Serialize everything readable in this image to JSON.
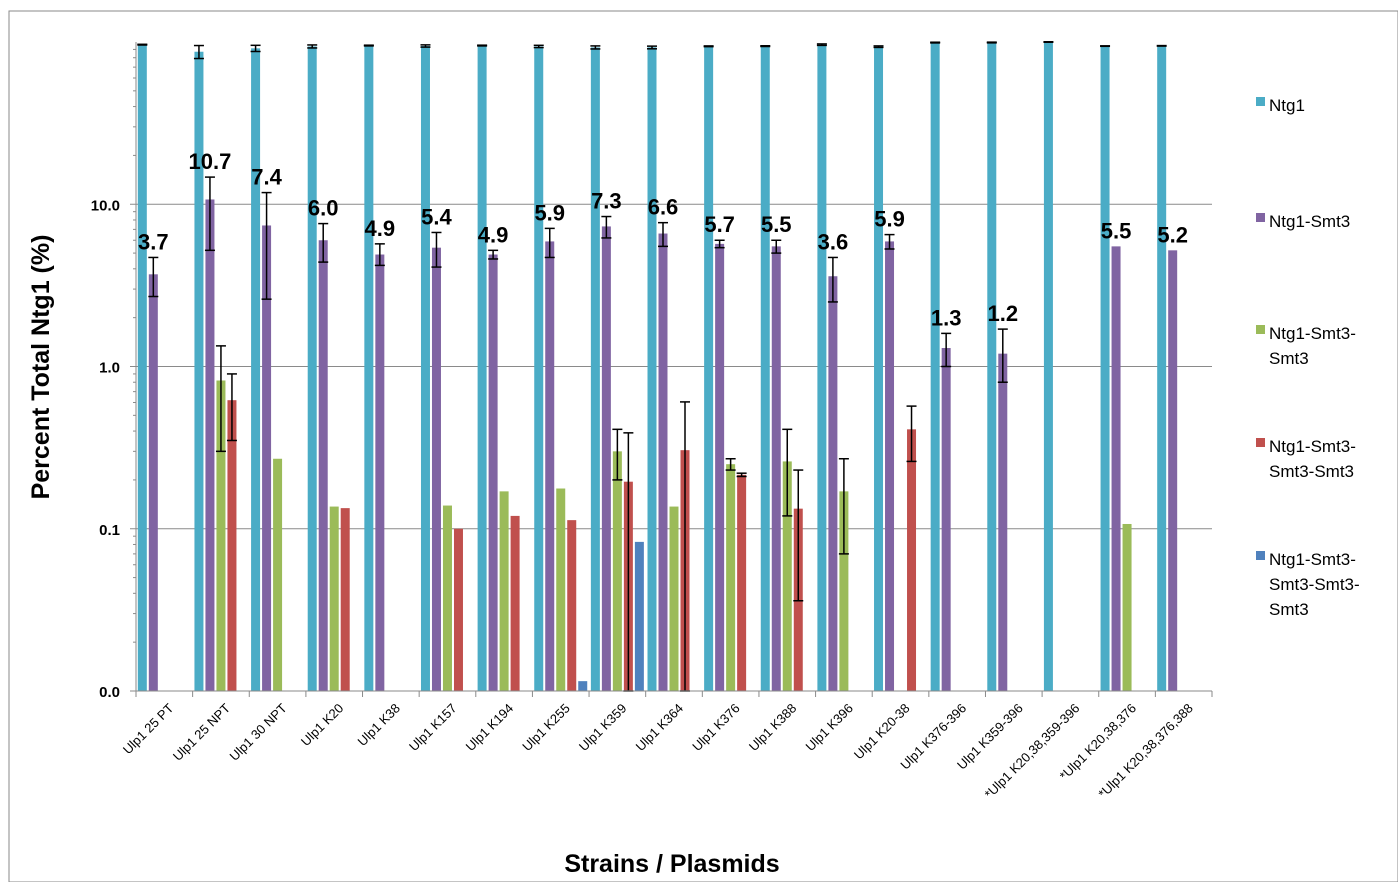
{
  "chart_data": {
    "type": "bar",
    "title": "",
    "xlabel": "Strains / Plasmids",
    "ylabel": "Percent Total Ntg1 (%)",
    "yscale": "log",
    "ylim": [
      0.01,
      100
    ],
    "yticks": [
      {
        "value": 0.01,
        "label": "0.0"
      },
      {
        "value": 0.1,
        "label": "0.1"
      },
      {
        "value": 1,
        "label": "1.0"
      },
      {
        "value": 10,
        "label": "10.0"
      }
    ],
    "grid": true,
    "legend_position": "right",
    "categories": [
      "Ulp1 25 PT",
      "Ulp1 25 NPT",
      "Ulp1 30 NPT",
      "Ulp1 K20",
      "Ulp1 K38",
      "Ulp1 K157",
      "Ulp1 K194",
      "Ulp1 K255",
      "Ulp1 K359",
      "Ulp1 K364",
      "Ulp1 K376",
      "Ulp1 K388",
      "Ulp1 K396",
      "Ulp1 K20-38",
      "Ulp1 K376-396",
      "Ulp1 K359-396",
      "*Ulp1 K20,38,359-396",
      "*Ulp1 K20,38,376",
      "*Ulp1 K20,38,376,388"
    ],
    "series": [
      {
        "name": "Ntg1",
        "color": "#4bacc6",
        "values": [
          95.8,
          87.1,
          91.4,
          93.9,
          95.1,
          94.5,
          95.1,
          93.9,
          92.6,
          92.8,
          94.1,
          94.3,
          96.3,
          93.6,
          98.7,
          98.8,
          100,
          94.4,
          94.7
        ],
        "err_low": [
          0,
          8,
          4,
          2,
          0.5,
          1.5,
          0.5,
          1.5,
          2,
          2,
          0.5,
          0.5,
          1,
          1,
          0,
          0,
          0,
          0,
          0
        ],
        "err_high": [
          1,
          8,
          4,
          2,
          0.5,
          1.5,
          0.5,
          1.5,
          2,
          1.5,
          0.5,
          0.5,
          1,
          1,
          1,
          1,
          0,
          0,
          0
        ]
      },
      {
        "name": "Ntg1-Smt3",
        "color": "#8064a2",
        "values": [
          3.7,
          10.7,
          7.4,
          6.0,
          4.9,
          5.4,
          4.9,
          5.9,
          7.3,
          6.6,
          5.7,
          5.5,
          3.6,
          5.9,
          1.3,
          1.2,
          null,
          5.5,
          5.2
        ],
        "labels": [
          "3.7",
          "10.7",
          "7.4",
          "6.0",
          "4.9",
          "5.4",
          "4.9",
          "5.9",
          "7.3",
          "6.6",
          "5.7",
          "5.5",
          "3.6",
          "5.9",
          "1.3",
          "1.2",
          "",
          "5.5",
          "5.2"
        ],
        "err_low": [
          1,
          5.5,
          4.8,
          1.6,
          0.7,
          1.3,
          0.3,
          1.2,
          1.1,
          1.1,
          0.3,
          0.5,
          1.1,
          0.6,
          0.3,
          0.4,
          null,
          null,
          null
        ],
        "err_high": [
          1,
          4,
          4.4,
          1.6,
          0.8,
          1.3,
          0.3,
          1.2,
          1.1,
          1.1,
          0.3,
          0.5,
          1.1,
          0.6,
          0.3,
          0.5,
          null,
          null,
          null
        ]
      },
      {
        "name": "Ntg1-Smt3-Smt3",
        "color": "#9bbb59",
        "values": [
          null,
          0.82,
          0.27,
          0.137,
          null,
          0.139,
          0.17,
          0.177,
          0.3,
          0.137,
          0.25,
          0.26,
          0.17,
          null,
          null,
          null,
          null,
          0.107,
          null
        ],
        "err_low": [
          null,
          0.52,
          null,
          null,
          null,
          null,
          null,
          null,
          0.1,
          null,
          0.02,
          0.14,
          0.1,
          null,
          null,
          null,
          null,
          null,
          null
        ],
        "err_high": [
          null,
          0.52,
          null,
          null,
          null,
          null,
          null,
          null,
          0.11,
          null,
          0.02,
          0.15,
          0.1,
          null,
          null,
          null,
          null,
          null,
          null
        ]
      },
      {
        "name": "Ntg1-Smt3-Smt3-Smt3",
        "color": "#c0504d",
        "values": [
          null,
          0.62,
          null,
          0.134,
          null,
          0.1,
          0.12,
          0.113,
          0.195,
          0.305,
          0.215,
          0.133,
          null,
          0.41,
          null,
          null,
          null,
          null,
          null
        ],
        "err_low": [
          null,
          0.27,
          null,
          null,
          null,
          null,
          null,
          null,
          0.195,
          0.3,
          0.005,
          0.097,
          null,
          0.15,
          null,
          null,
          null,
          null,
          null
        ],
        "err_high": [
          null,
          0.28,
          null,
          null,
          null,
          null,
          null,
          null,
          0.195,
          0.3,
          0.005,
          0.097,
          null,
          0.16,
          null,
          null,
          null,
          null,
          null
        ]
      },
      {
        "name": "Ntg1-Smt3-Smt3-Smt3-Smt3",
        "color": "#4f81bd",
        "values": [
          null,
          null,
          null,
          null,
          null,
          null,
          null,
          0.0115,
          0.083,
          null,
          null,
          null,
          null,
          null,
          null,
          null,
          null,
          null,
          null
        ],
        "err_low": [
          null,
          null,
          null,
          null,
          null,
          null,
          null,
          null,
          null,
          null,
          null,
          null,
          null,
          null,
          null,
          null,
          null,
          null,
          null
        ],
        "err_high": [
          null,
          null,
          null,
          null,
          null,
          null,
          null,
          null,
          null,
          null,
          null,
          null,
          null,
          null,
          null,
          null,
          null,
          null,
          null
        ]
      }
    ],
    "legend": [
      {
        "name": "Ntg1",
        "lines": [
          "Ntg1"
        ]
      },
      {
        "name": "Ntg1-Smt3",
        "lines": [
          "Ntg1-Smt3"
        ]
      },
      {
        "name": "Ntg1-Smt3-Smt3",
        "lines": [
          "Ntg1-Smt3-",
          "Smt3"
        ]
      },
      {
        "name": "Ntg1-Smt3-Smt3-Smt3",
        "lines": [
          "Ntg1-Smt3-",
          "Smt3-Smt3"
        ]
      },
      {
        "name": "Ntg1-Smt3-Smt3-Smt3-Smt3",
        "lines": [
          "Ntg1-Smt3-",
          "Smt3-Smt3-",
          "Smt3"
        ]
      }
    ]
  }
}
